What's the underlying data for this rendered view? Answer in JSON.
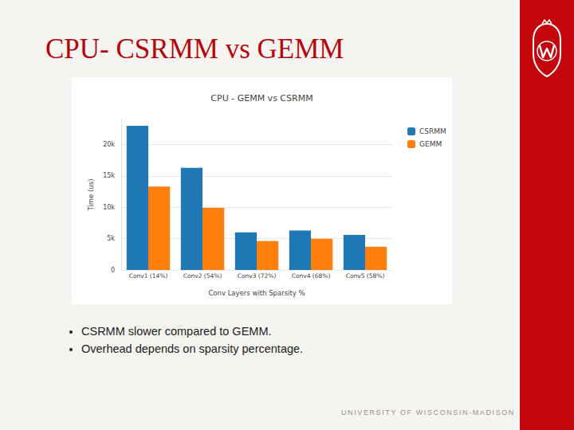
{
  "slide": {
    "title": "CPU- CSRMM vs GEMM",
    "bullets": [
      "CSRMM slower compared to GEMM.",
      "Overhead depends on sparsity percentage."
    ],
    "footer": "UNIVERSITY OF WISCONSIN-MADISON"
  },
  "chart_data": {
    "type": "bar",
    "title": "CPU - GEMM vs CSRMM",
    "x_label": "Conv Layers with Sparsity %",
    "y_label": "Time (us)",
    "categories": [
      "Conv1 (14%)",
      "Conv2 (54%)",
      "Conv3 (72%)",
      "Conv4 (68%)",
      "Conv5 (58%)"
    ],
    "series": [
      {
        "name": "CSRMM",
        "color": "#1f77b4",
        "values": [
          23000,
          16300,
          6000,
          6300,
          5600
        ]
      },
      {
        "name": "GEMM",
        "color": "#ff7f0e",
        "values": [
          13300,
          9900,
          4600,
          5000,
          3700
        ]
      }
    ],
    "ylim": [
      0,
      24000
    ],
    "yticks": [
      0,
      {
        "value": 5000,
        "label": "5k"
      },
      {
        "value": 10000,
        "label": "10k"
      },
      {
        "value": 15000,
        "label": "15k"
      },
      {
        "value": 20000,
        "label": "20k"
      }
    ],
    "grid": true,
    "legend": "top-right"
  }
}
